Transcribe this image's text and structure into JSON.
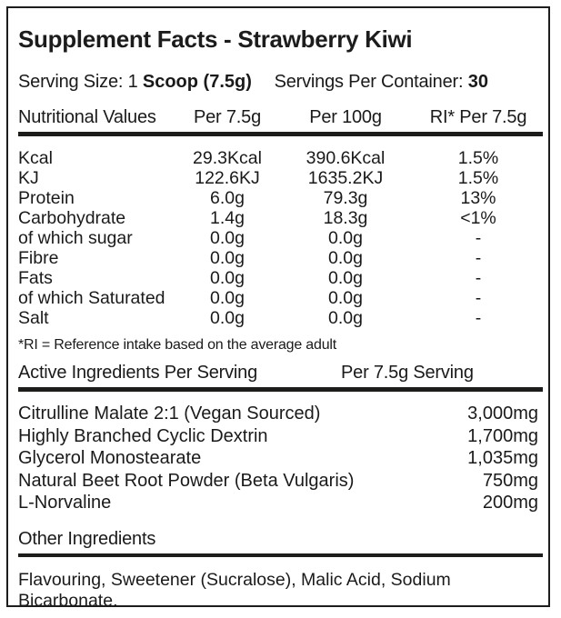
{
  "title": "Supplement Facts - Strawberry Kiwi",
  "serving": {
    "size_label": "Serving Size: 1",
    "size_value": "Scoop (7.5g)",
    "container_label": "Servings Per Container:",
    "container_value": "30"
  },
  "nutrition_table": {
    "headers": {
      "name": "Nutritional Values",
      "per_7_5g": "Per 7.5g",
      "per_100g": "Per 100g",
      "ri": "RI* Per 7.5g"
    },
    "rows": [
      {
        "name": "Kcal",
        "per_7_5g": "29.3Kcal",
        "per_100g": "390.6Kcal",
        "ri": "1.5%"
      },
      {
        "name": "KJ",
        "per_7_5g": "122.6KJ",
        "per_100g": "1635.2KJ",
        "ri": "1.5%"
      },
      {
        "name": "Protein",
        "per_7_5g": "6.0g",
        "per_100g": "79.3g",
        "ri": "13%"
      },
      {
        "name": "Carbohydrate",
        "per_7_5g": "1.4g",
        "per_100g": "18.3g",
        "ri": "<1%"
      },
      {
        "name": "of which sugar",
        "per_7_5g": "0.0g",
        "per_100g": "0.0g",
        "ri": "-"
      },
      {
        "name": "Fibre",
        "per_7_5g": "0.0g",
        "per_100g": "0.0g",
        "ri": "-"
      },
      {
        "name": "Fats",
        "per_7_5g": "0.0g",
        "per_100g": "0.0g",
        "ri": "-"
      },
      {
        "name": "of which Saturated",
        "per_7_5g": "0.0g",
        "per_100g": "0.0g",
        "ri": "-"
      },
      {
        "name": "Salt",
        "per_7_5g": "0.0g",
        "per_100g": "0.0g",
        "ri": "-"
      }
    ]
  },
  "footnote": "*RI = Reference intake based on the average adult",
  "active_ingredients": {
    "header_left": "Active Ingredients Per Serving",
    "header_right": "Per 7.5g Serving",
    "rows": [
      {
        "name": "Citrulline Malate 2:1 (Vegan Sourced)",
        "amount": "3,000mg"
      },
      {
        "name": "Highly Branched Cyclic Dextrin",
        "amount": "1,700mg"
      },
      {
        "name": "Glycerol Monostearate",
        "amount": "1,035mg"
      },
      {
        "name": "Natural Beet Root Powder (Beta Vulgaris)",
        "amount": "750mg"
      },
      {
        "name": "L-Norvaline",
        "amount": "200mg"
      }
    ]
  },
  "other_ingredients": {
    "heading": "Other Ingredients",
    "text": "Flavouring, Sweetener (Sucralose), Malic Acid, Sodium Bicarbonate."
  }
}
